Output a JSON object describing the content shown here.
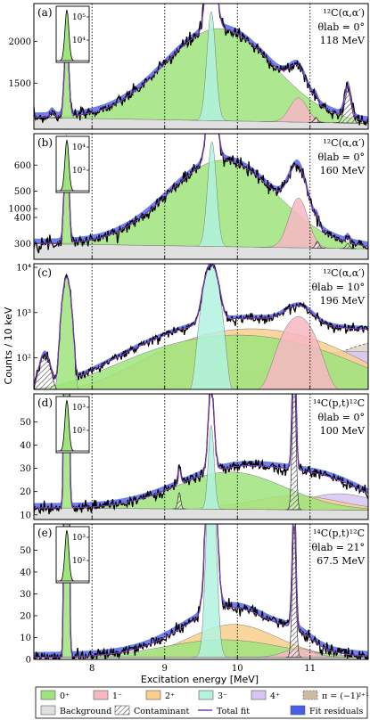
{
  "chart_data": {
    "type": "area",
    "xlabel": "Excitation energy [MeV]",
    "ylabel": "Counts / 10 keV",
    "xlim": [
      7.2,
      11.8
    ],
    "x_ticks": [
      "8",
      "9",
      "10",
      "11"
    ],
    "dotted_vertical_lines_at_MeV": [
      8,
      9,
      10,
      11
    ],
    "panels": [
      {
        "tag": "(a)",
        "reaction": "¹²C(α,α′)",
        "angle": "θlab = 0°",
        "energy": "118 MeV",
        "yscale": "linear",
        "ylim": [
          950,
          2450
        ],
        "yticks": [
          "1000",
          "1500",
          "2000"
        ],
        "inset_ticks": [
          "10⁵",
          "10⁴"
        ],
        "peaks": [
          {
            "type": "0+",
            "center": 7.65,
            "height": 1000,
            "width": 0.03
          },
          {
            "type": "0+",
            "center": 9.75,
            "height": 1100,
            "width": 0.75
          },
          {
            "type": "3-",
            "center": 9.64,
            "height": 1300,
            "width": 0.06
          },
          {
            "type": "1-",
            "center": 10.84,
            "height": 290,
            "width": 0.12
          },
          {
            "type": "contaminant",
            "center": 11.08,
            "height": 60,
            "width": 0.025
          },
          {
            "type": "contaminant",
            "center": 11.52,
            "height": 380,
            "width": 0.045
          },
          {
            "type": "contaminant",
            "center": 7.45,
            "height": 60,
            "width": 0.03
          }
        ],
        "background": [
          [
            7.2,
            1090
          ],
          [
            11.8,
            1020
          ]
        ]
      },
      {
        "tag": "(b)",
        "reaction": "¹²C(α,α′)",
        "angle": "θlab = 0°",
        "energy": "160 MeV",
        "yscale": "linear",
        "ylim": [
          240,
          720
        ],
        "yticks": [
          "300",
          "400",
          "500",
          "600"
        ],
        "inset_ticks": [
          "10⁴",
          "10³"
        ],
        "peaks": [
          {
            "type": "0+",
            "center": 7.65,
            "height": 400,
            "width": 0.03
          },
          {
            "type": "0+",
            "center": 9.8,
            "height": 330,
            "width": 0.75
          },
          {
            "type": "3-",
            "center": 9.65,
            "height": 400,
            "width": 0.06
          },
          {
            "type": "1-",
            "center": 10.84,
            "height": 190,
            "width": 0.13
          },
          {
            "type": "contaminant",
            "center": 11.1,
            "height": 25,
            "width": 0.025
          },
          {
            "type": "contaminant",
            "center": 11.52,
            "height": 18,
            "width": 0.025
          }
        ],
        "background": [
          [
            7.2,
            300
          ],
          [
            11.8,
            280
          ]
        ]
      },
      {
        "tag": "(c)",
        "reaction": "¹²C(α,α′)",
        "angle": "θlab = 10°",
        "energy": "196 MeV",
        "yscale": "log",
        "ylim": [
          20,
          12000
        ],
        "yticks": [
          "10²",
          "10³",
          "10⁴"
        ],
        "peaks": [
          {
            "type": "0+",
            "center": 7.65,
            "height": 6000,
            "width": 0.04
          },
          {
            "type": "3-",
            "center": 9.64,
            "height": 11000,
            "width": 0.07
          },
          {
            "type": "0+",
            "center": 10.0,
            "height": 300,
            "width": 0.9
          },
          {
            "type": "2+",
            "center": 10.2,
            "height": 420,
            "width": 0.8
          },
          {
            "type": "1-",
            "center": 10.84,
            "height": 800,
            "width": 0.16
          },
          {
            "type": "4+",
            "center": 11.6,
            "height": 120,
            "width": 0.8
          },
          {
            "type": "pi-natural",
            "center": 12.3,
            "height": 250,
            "width": 0.7
          },
          {
            "type": "contaminant",
            "center": 7.35,
            "height": 100,
            "width": 0.06
          }
        ],
        "background": [
          [
            7.2,
            18
          ],
          [
            11.8,
            18
          ]
        ]
      },
      {
        "tag": "(d)",
        "reaction": "¹⁴C(p,t)¹²C",
        "angle": "θlab = 0°",
        "energy": "100 MeV",
        "yscale": "linear",
        "ylim": [
          8,
          62
        ],
        "yticks": [
          "10",
          "20",
          "30",
          "40",
          "50"
        ],
        "inset_ticks": [
          "10³",
          "10²"
        ],
        "peaks": [
          {
            "type": "0+",
            "center": 7.65,
            "height": 500,
            "width": 0.02
          },
          {
            "type": "0+",
            "center": 9.9,
            "height": 16,
            "width": 0.75
          },
          {
            "type": "3-",
            "center": 9.64,
            "height": 36,
            "width": 0.04
          },
          {
            "type": "2+",
            "center": 10.8,
            "height": 6,
            "width": 0.6
          },
          {
            "type": "4+",
            "center": 11.4,
            "height": 7,
            "width": 0.5
          },
          {
            "type": "contaminant",
            "center": 10.78,
            "height": 58,
            "width": 0.025
          },
          {
            "type": "contaminant",
            "center": 9.2,
            "height": 7,
            "width": 0.02
          }
        ],
        "background": [
          [
            7.2,
            13
          ],
          [
            11.8,
            12
          ]
        ]
      },
      {
        "tag": "(e)",
        "reaction": "¹⁴C(p,t)¹²C",
        "angle": "θlab = 21°",
        "energy": "67.5 MeV",
        "yscale": "linear",
        "ylim": [
          0,
          62
        ],
        "yticks": [
          "0",
          "10",
          "20",
          "30",
          "40",
          "50"
        ],
        "inset_ticks": [
          "10³",
          "10²"
        ],
        "peaks": [
          {
            "type": "0+",
            "center": 7.65,
            "height": 500,
            "width": 0.02
          },
          {
            "type": "3-",
            "center": 9.64,
            "height": 110,
            "width": 0.06
          },
          {
            "type": "2+",
            "center": 9.95,
            "height": 15,
            "width": 0.6
          },
          {
            "type": "0+",
            "center": 9.8,
            "height": 8,
            "width": 0.8
          },
          {
            "type": "1-",
            "center": 10.84,
            "height": 4,
            "width": 0.2
          },
          {
            "type": "contaminant",
            "center": 10.78,
            "height": 60,
            "width": 0.025
          }
        ],
        "background": [
          [
            7.2,
            1
          ],
          [
            11.8,
            1
          ]
        ]
      }
    ],
    "legend": [
      {
        "key": "0+",
        "label": "0⁺",
        "kind": "fill",
        "color": "#9fe47c"
      },
      {
        "key": "1-",
        "label": "1⁻",
        "kind": "fill",
        "color": "#f7b7c4"
      },
      {
        "key": "2+",
        "label": "2⁺",
        "kind": "fill",
        "color": "#f9cf8e"
      },
      {
        "key": "3-",
        "label": "3⁻",
        "kind": "fill",
        "color": "#b2f2df"
      },
      {
        "key": "4+",
        "label": "4⁺",
        "kind": "fill",
        "color": "#d7c6f2"
      },
      {
        "key": "pi-natural",
        "label": "π = (−1)ᴶ⁺¹",
        "kind": "dashed",
        "color": "#cdb9a4"
      },
      {
        "key": "background",
        "label": "Background",
        "kind": "fill",
        "color": "#e0e0e0"
      },
      {
        "key": "contaminant",
        "label": "Contaminant",
        "kind": "hatch",
        "color": "#ffffff"
      },
      {
        "key": "total",
        "label": "Total fit",
        "kind": "line",
        "color": "#7a3bb0"
      },
      {
        "key": "residuals",
        "label": "Fit residuals",
        "kind": "fill",
        "color": "#4a5ee8"
      }
    ]
  }
}
